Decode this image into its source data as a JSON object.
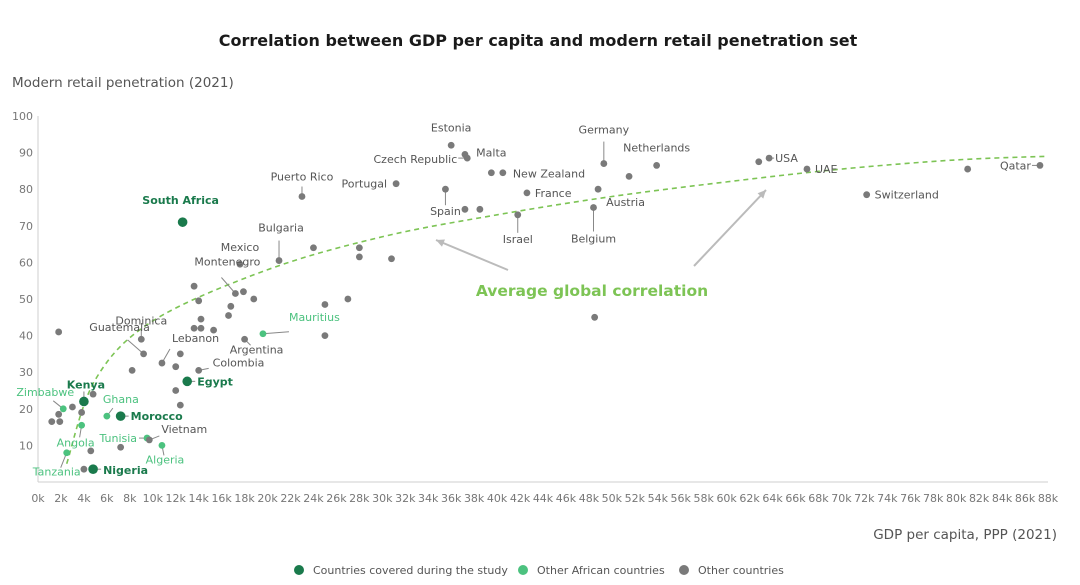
{
  "chart_data": {
    "type": "scatter",
    "title": "Correlation between GDP per capita and modern retail penetration set",
    "ylabel": "Modern retail penetration (2021)",
    "xlabel": "GDP per capita, PPP (2021)",
    "xlim": [
      0,
      88
    ],
    "ylim": [
      0,
      100
    ],
    "x_ticks": [
      0,
      2,
      4,
      6,
      8,
      10,
      12,
      14,
      16,
      18,
      20,
      22,
      24,
      26,
      28,
      30,
      32,
      34,
      36,
      38,
      40,
      42,
      44,
      46,
      48,
      50,
      52,
      54,
      56,
      58,
      60,
      62,
      64,
      66,
      68,
      70,
      72,
      74,
      76,
      78,
      80,
      82,
      84,
      86,
      88
    ],
    "x_tick_labels": [
      "0k",
      "2k",
      "4k",
      "6k",
      "8k",
      "10k",
      "12k",
      "14k",
      "16k",
      "18k",
      "20k",
      "22k",
      "24k",
      "26k",
      "28k",
      "30k",
      "32k",
      "34k",
      "36k",
      "38k",
      "40k",
      "42k",
      "44k",
      "46k",
      "48k",
      "50k",
      "52k",
      "54k",
      "56k",
      "58k",
      "60k",
      "62k",
      "64k",
      "66k",
      "68k",
      "70k",
      "72k",
      "74k",
      "76k",
      "78k",
      "80k",
      "82k",
      "84k",
      "86k",
      "88k"
    ],
    "y_ticks": [
      10,
      20,
      30,
      40,
      50,
      60,
      70,
      80,
      90,
      100
    ],
    "y_tick_labels": [
      "10",
      "20",
      "30",
      "40",
      "50",
      "60",
      "70",
      "80",
      "90",
      "100"
    ],
    "grid": false,
    "colors": {
      "covered": "#1a7a4c",
      "african": "#4cc27f",
      "other": "#7a7a7a",
      "trend": "#7dc455",
      "leader": "#888888",
      "arrow": "#bbbbbb"
    },
    "legend": {
      "position": "bottom",
      "entries": [
        {
          "key": "covered",
          "label": "Countries covered during the study"
        },
        {
          "key": "african",
          "label": "Other African countries"
        },
        {
          "key": "other",
          "label": "Other countries"
        }
      ]
    },
    "trendline": {
      "label": "Average global correlation",
      "model": "logarithmic",
      "points": [
        [
          2.5,
          5
        ],
        [
          5,
          28
        ],
        [
          10,
          44
        ],
        [
          20,
          58
        ],
        [
          30,
          67
        ],
        [
          40,
          73
        ],
        [
          50,
          78
        ],
        [
          60,
          82
        ],
        [
          70,
          85.5
        ],
        [
          80,
          88
        ],
        [
          88,
          89
        ]
      ]
    },
    "points": [
      {
        "x": 12.6,
        "y": 71,
        "group": "covered",
        "label": "South Africa"
      },
      {
        "x": 4,
        "y": 22,
        "group": "covered",
        "label": "Kenya"
      },
      {
        "x": 13,
        "y": 27.5,
        "group": "covered",
        "label": "Egypt"
      },
      {
        "x": 7.2,
        "y": 18,
        "group": "covered",
        "label": "Morocco"
      },
      {
        "x": 4.8,
        "y": 3.5,
        "group": "covered",
        "label": "Nigeria"
      },
      {
        "x": 2.2,
        "y": 20,
        "group": "african",
        "label": "Zimbabwe"
      },
      {
        "x": 6,
        "y": 18,
        "group": "african",
        "label": "Ghana"
      },
      {
        "x": 3.8,
        "y": 15.5,
        "group": "african",
        "label": "Angola"
      },
      {
        "x": 9.5,
        "y": 12,
        "group": "african",
        "label": "Tunisia"
      },
      {
        "x": 10.8,
        "y": 10,
        "group": "african",
        "label": "Algeria"
      },
      {
        "x": 2.5,
        "y": 8,
        "group": "african",
        "label": "Tanzania"
      },
      {
        "x": 19.6,
        "y": 40.5,
        "group": "african",
        "label": "Mauritius"
      },
      {
        "x": 36,
        "y": 92,
        "group": "other",
        "label": "Estonia"
      },
      {
        "x": 37.2,
        "y": 89.5,
        "group": "other",
        "label": ""
      },
      {
        "x": 37.4,
        "y": 88.5,
        "group": "other",
        "label": "Czech Republic"
      },
      {
        "x": 39.5,
        "y": 84.5,
        "group": "other",
        "label": "Malta"
      },
      {
        "x": 40.5,
        "y": 84.5,
        "group": "other",
        "label": "New Zealand"
      },
      {
        "x": 31.2,
        "y": 81.5,
        "group": "other",
        "label": "Portugal"
      },
      {
        "x": 35.5,
        "y": 80,
        "group": "other",
        "label": "Spain"
      },
      {
        "x": 42.6,
        "y": 79,
        "group": "other",
        "label": "France"
      },
      {
        "x": 37.2,
        "y": 74.5,
        "group": "other",
        "label": ""
      },
      {
        "x": 38.5,
        "y": 74.5,
        "group": "other",
        "label": ""
      },
      {
        "x": 41.8,
        "y": 73,
        "group": "other",
        "label": "Israel"
      },
      {
        "x": 23,
        "y": 78,
        "group": "other",
        "label": "Puerto Rico"
      },
      {
        "x": 49.3,
        "y": 87,
        "group": "other",
        "label": "Germany"
      },
      {
        "x": 53.9,
        "y": 86.5,
        "group": "other",
        "label": "Netherlands"
      },
      {
        "x": 48.8,
        "y": 80,
        "group": "other",
        "label": "Austria"
      },
      {
        "x": 51.5,
        "y": 83.5,
        "group": "other",
        "label": ""
      },
      {
        "x": 48.4,
        "y": 75,
        "group": "other",
        "label": "Belgium"
      },
      {
        "x": 48.5,
        "y": 45,
        "group": "other",
        "label": ""
      },
      {
        "x": 63.7,
        "y": 88.5,
        "group": "other",
        "label": "USA"
      },
      {
        "x": 62.8,
        "y": 87.5,
        "group": "other",
        "label": ""
      },
      {
        "x": 67,
        "y": 85.5,
        "group": "other",
        "label": "UAE"
      },
      {
        "x": 72.2,
        "y": 78.5,
        "group": "other",
        "label": "Switzerland"
      },
      {
        "x": 81,
        "y": 85.5,
        "group": "other",
        "label": ""
      },
      {
        "x": 87.3,
        "y": 86.5,
        "group": "other",
        "label": "Qatar"
      },
      {
        "x": 21,
        "y": 60.5,
        "group": "other",
        "label": "Bulgaria"
      },
      {
        "x": 17.6,
        "y": 59.5,
        "group": "other",
        "label": "Mexico"
      },
      {
        "x": 24,
        "y": 64,
        "group": "other",
        "label": ""
      },
      {
        "x": 28,
        "y": 64,
        "group": "other",
        "label": ""
      },
      {
        "x": 28,
        "y": 61.5,
        "group": "other",
        "label": ""
      },
      {
        "x": 30.8,
        "y": 61,
        "group": "other",
        "label": ""
      },
      {
        "x": 17.2,
        "y": 51.5,
        "group": "other",
        "label": "Montenegro"
      },
      {
        "x": 17.9,
        "y": 52,
        "group": "other",
        "label": ""
      },
      {
        "x": 13.6,
        "y": 53.5,
        "group": "other",
        "label": ""
      },
      {
        "x": 14,
        "y": 49.5,
        "group": "other",
        "label": ""
      },
      {
        "x": 16.8,
        "y": 48,
        "group": "other",
        "label": ""
      },
      {
        "x": 18.8,
        "y": 50,
        "group": "other",
        "label": ""
      },
      {
        "x": 16.6,
        "y": 45.5,
        "group": "other",
        "label": ""
      },
      {
        "x": 25,
        "y": 48.5,
        "group": "other",
        "label": ""
      },
      {
        "x": 27,
        "y": 50,
        "group": "other",
        "label": ""
      },
      {
        "x": 14.2,
        "y": 44.5,
        "group": "other",
        "label": ""
      },
      {
        "x": 13.6,
        "y": 42,
        "group": "other",
        "label": ""
      },
      {
        "x": 14.2,
        "y": 42,
        "group": "other",
        "label": ""
      },
      {
        "x": 15.3,
        "y": 41.5,
        "group": "other",
        "label": ""
      },
      {
        "x": 18,
        "y": 39,
        "group": "other",
        "label": "Argentina"
      },
      {
        "x": 25,
        "y": 40,
        "group": "other",
        "label": ""
      },
      {
        "x": 9,
        "y": 39,
        "group": "other",
        "label": "Dominica"
      },
      {
        "x": 9.2,
        "y": 35,
        "group": "other",
        "label": "Guatemala"
      },
      {
        "x": 10.8,
        "y": 32.5,
        "group": "other",
        "label": "Lebanon"
      },
      {
        "x": 12.4,
        "y": 35,
        "group": "other",
        "label": ""
      },
      {
        "x": 12,
        "y": 31.5,
        "group": "other",
        "label": ""
      },
      {
        "x": 14,
        "y": 30.5,
        "group": "other",
        "label": "Colombia"
      },
      {
        "x": 8.2,
        "y": 30.5,
        "group": "other",
        "label": ""
      },
      {
        "x": 1.8,
        "y": 41,
        "group": "other",
        "label": ""
      },
      {
        "x": 12,
        "y": 25,
        "group": "other",
        "label": ""
      },
      {
        "x": 12.4,
        "y": 21,
        "group": "other",
        "label": ""
      },
      {
        "x": 4.8,
        "y": 24,
        "group": "other",
        "label": ""
      },
      {
        "x": 3,
        "y": 20.5,
        "group": "other",
        "label": ""
      },
      {
        "x": 1.8,
        "y": 18.5,
        "group": "other",
        "label": ""
      },
      {
        "x": 3.8,
        "y": 19,
        "group": "other",
        "label": ""
      },
      {
        "x": 1.2,
        "y": 16.5,
        "group": "other",
        "label": ""
      },
      {
        "x": 1.9,
        "y": 16.5,
        "group": "other",
        "label": ""
      },
      {
        "x": 9.7,
        "y": 11.5,
        "group": "other",
        "label": "Vietnam"
      },
      {
        "x": 7.2,
        "y": 9.5,
        "group": "other",
        "label": ""
      },
      {
        "x": 4.6,
        "y": 8.5,
        "group": "other",
        "label": ""
      },
      {
        "x": 4,
        "y": 3.5,
        "group": "other",
        "label": ""
      }
    ]
  }
}
